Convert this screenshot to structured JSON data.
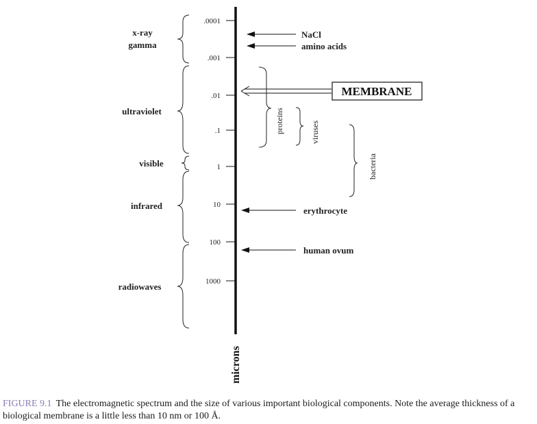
{
  "figure": {
    "axis_title": "microns",
    "ticks": [
      ".0001",
      ".001",
      ".01",
      ".1",
      "1",
      "10",
      "100",
      "1000"
    ],
    "spectrum": [
      {
        "name": "x-ray"
      },
      {
        "name": "gamma"
      },
      {
        "name": "ultraviolet"
      },
      {
        "name": "visible"
      },
      {
        "name": "infrared"
      },
      {
        "name": "radiowaves"
      }
    ],
    "pointers": [
      {
        "label": "NaCl"
      },
      {
        "label": "amino acids"
      },
      {
        "label": "MEMBRANE"
      },
      {
        "label": "erythrocyte"
      },
      {
        "label": "human ovum"
      }
    ],
    "ranges": [
      {
        "label": "proteins"
      },
      {
        "label": "viruses"
      },
      {
        "label": "bacteria"
      }
    ]
  },
  "caption": {
    "figure_number": "FIGURE 9.1",
    "text": "The electromagnetic spectrum and the size of various important biological components. Note the average thickness of a biological membrane is a little less than 10 nm or 100 Å."
  }
}
